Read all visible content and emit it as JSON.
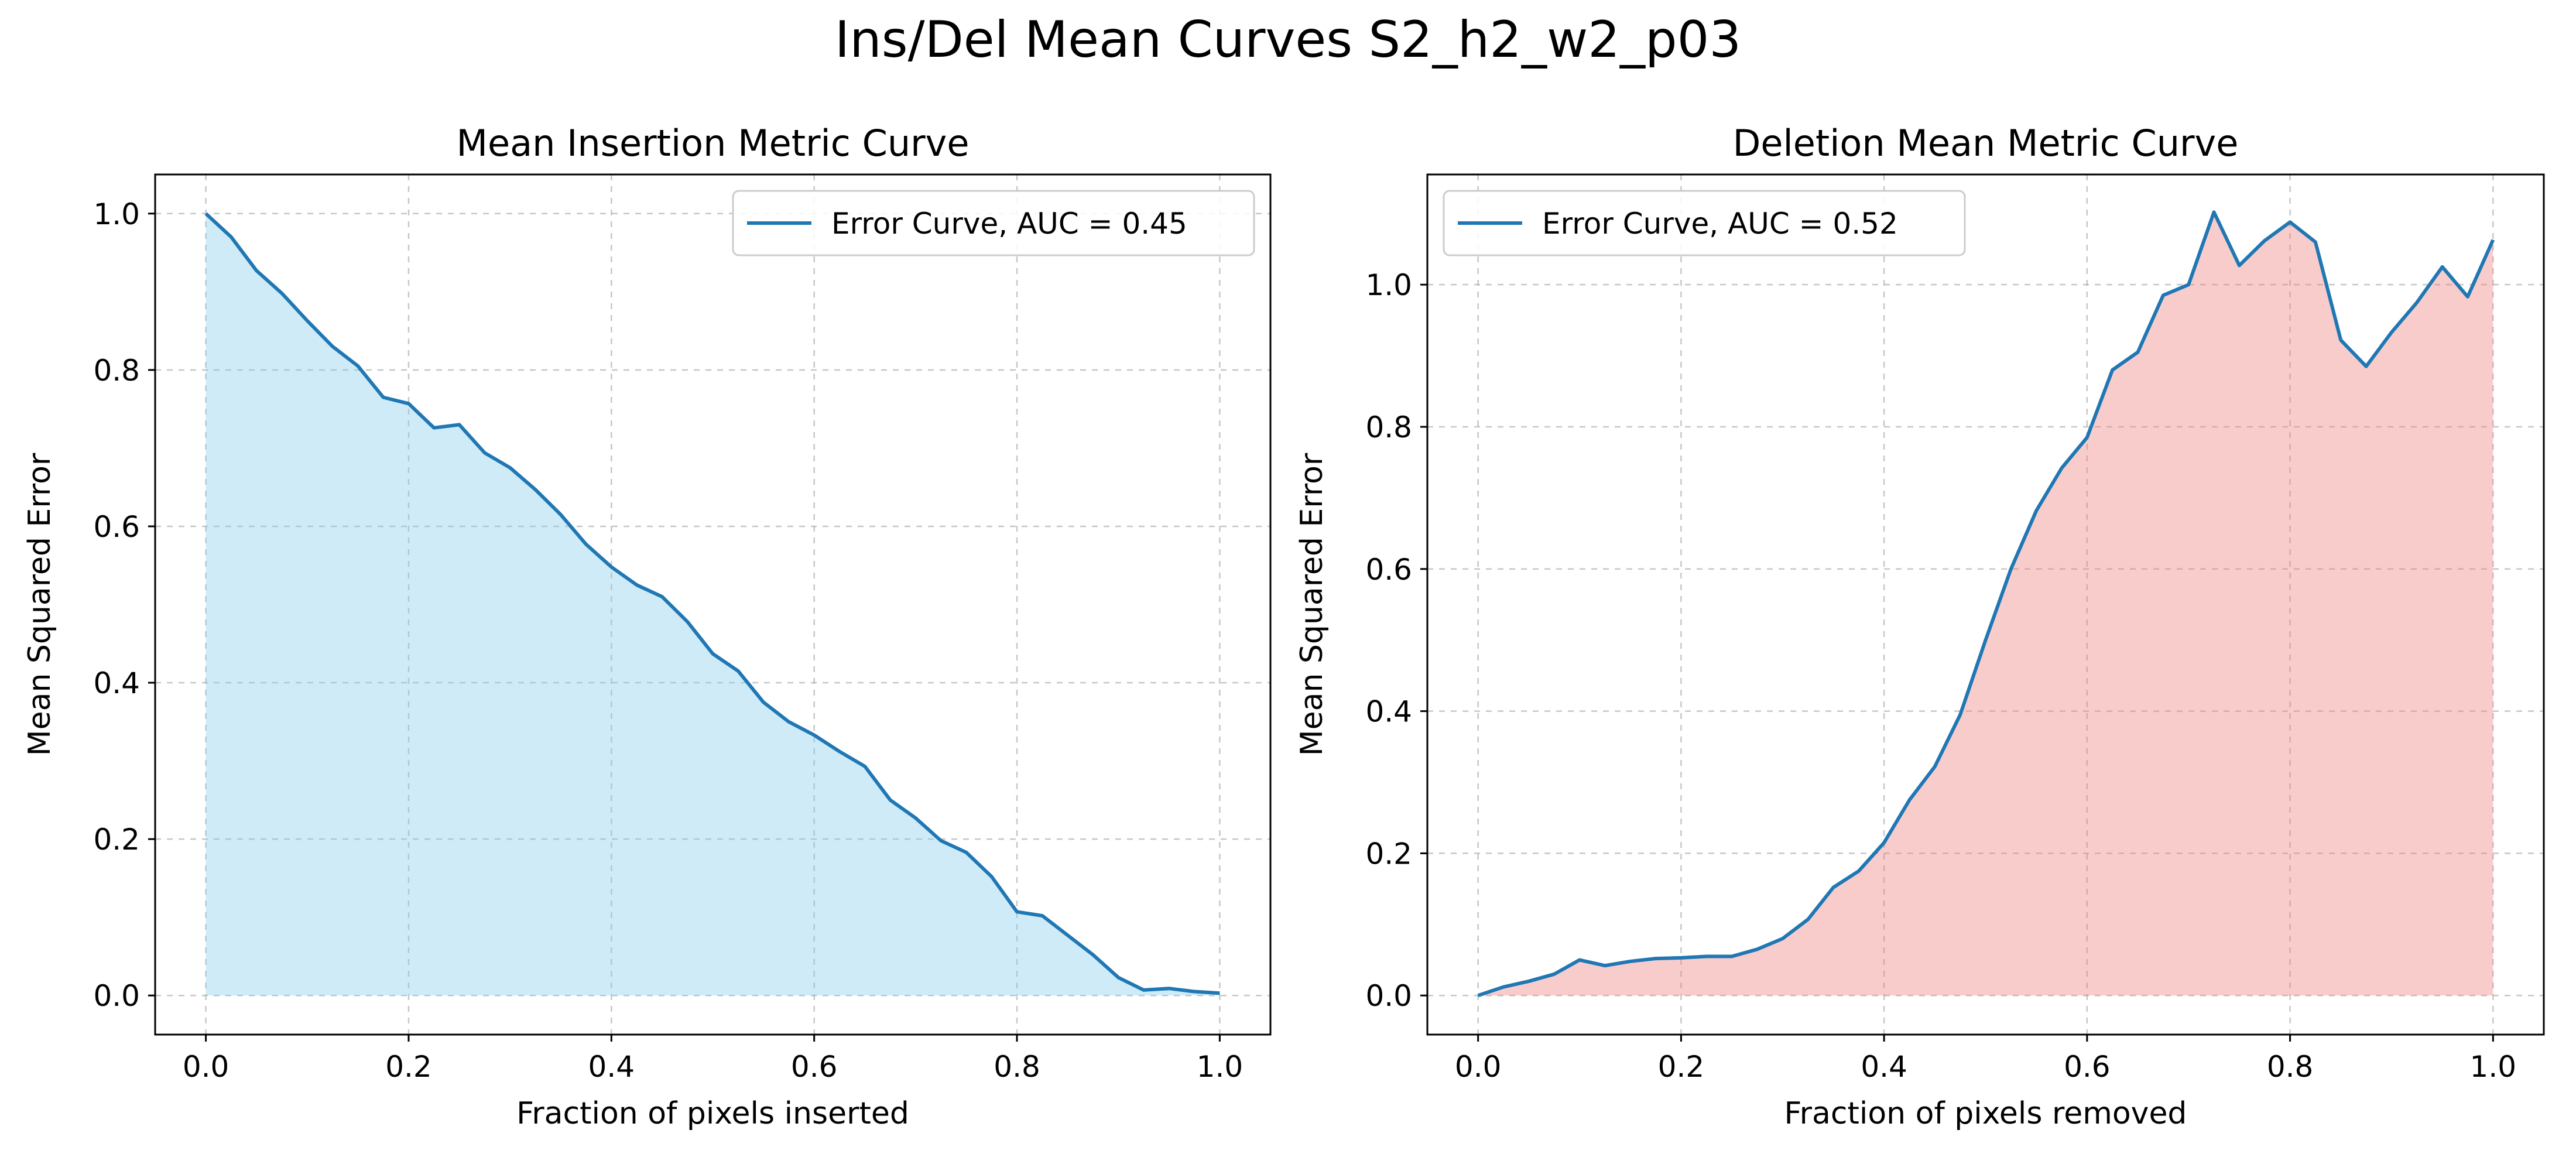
{
  "figure": {
    "suptitle": "Ins/Del Mean Curves S2_h2_w2_p03"
  },
  "chart_data": [
    {
      "type": "area",
      "title": "Mean Insertion Metric Curve",
      "xlabel": "Fraction of pixels inserted",
      "ylabel": "Mean Squared Error",
      "xlim": [
        -0.05,
        1.05
      ],
      "ylim": [
        -0.05,
        1.05
      ],
      "xticks": [
        0.0,
        0.2,
        0.4,
        0.6,
        0.8,
        1.0
      ],
      "yticks": [
        0.0,
        0.2,
        0.4,
        0.6,
        0.8,
        1.0
      ],
      "tick_labels_x": [
        "0.0",
        "0.2",
        "0.4",
        "0.6",
        "0.8",
        "1.0"
      ],
      "tick_labels_y": [
        "0.0",
        "0.2",
        "0.4",
        "0.6",
        "0.8",
        "1.0"
      ],
      "grid": true,
      "legend_position": "top-right",
      "line_color": "#1f77b4",
      "fill_color": "#87ceeb",
      "series": [
        {
          "name": "Error Curve, AUC = 0.45",
          "x": [
            0.0,
            0.025,
            0.05,
            0.075,
            0.1,
            0.125,
            0.15,
            0.175,
            0.2,
            0.225,
            0.25,
            0.275,
            0.3,
            0.325,
            0.35,
            0.375,
            0.4,
            0.425,
            0.45,
            0.475,
            0.5,
            0.525,
            0.55,
            0.575,
            0.6,
            0.625,
            0.65,
            0.675,
            0.7,
            0.725,
            0.75,
            0.775,
            0.8,
            0.825,
            0.85,
            0.875,
            0.9,
            0.925,
            0.95,
            0.975,
            1.0
          ],
          "y": [
            1.0,
            0.97,
            0.927,
            0.898,
            0.863,
            0.83,
            0.805,
            0.765,
            0.757,
            0.726,
            0.73,
            0.694,
            0.675,
            0.647,
            0.615,
            0.577,
            0.548,
            0.525,
            0.51,
            0.478,
            0.437,
            0.415,
            0.375,
            0.35,
            0.333,
            0.312,
            0.293,
            0.25,
            0.227,
            0.198,
            0.183,
            0.152,
            0.107,
            0.102,
            0.077,
            0.052,
            0.023,
            0.007,
            0.009,
            0.005,
            0.003
          ]
        }
      ]
    },
    {
      "type": "area",
      "title": "Deletion Mean Metric Curve",
      "xlabel": "Fraction of pixels removed",
      "ylabel": "Mean Squared Error",
      "xlim": [
        -0.05,
        1.05
      ],
      "ylim": [
        -0.055,
        1.155
      ],
      "xticks": [
        0.0,
        0.2,
        0.4,
        0.6,
        0.8,
        1.0
      ],
      "yticks": [
        0.0,
        0.2,
        0.4,
        0.6,
        0.8,
        1.0
      ],
      "tick_labels_x": [
        "0.0",
        "0.2",
        "0.4",
        "0.6",
        "0.8",
        "1.0"
      ],
      "tick_labels_y": [
        "0.0",
        "0.2",
        "0.4",
        "0.6",
        "0.8",
        "1.0"
      ],
      "grid": true,
      "legend_position": "top-left",
      "line_color": "#1f77b4",
      "fill_color": "#f08080",
      "series": [
        {
          "name": "Error Curve, AUC = 0.52",
          "x": [
            0.0,
            0.025,
            0.05,
            0.075,
            0.1,
            0.125,
            0.15,
            0.175,
            0.2,
            0.225,
            0.25,
            0.275,
            0.3,
            0.325,
            0.35,
            0.375,
            0.4,
            0.425,
            0.45,
            0.475,
            0.5,
            0.525,
            0.55,
            0.575,
            0.6,
            0.625,
            0.65,
            0.675,
            0.7,
            0.725,
            0.75,
            0.775,
            0.8,
            0.825,
            0.85,
            0.875,
            0.9,
            0.925,
            0.95,
            0.975,
            1.0
          ],
          "y": [
            0.0,
            0.012,
            0.02,
            0.03,
            0.05,
            0.042,
            0.048,
            0.052,
            0.053,
            0.055,
            0.055,
            0.065,
            0.08,
            0.107,
            0.152,
            0.175,
            0.215,
            0.275,
            0.322,
            0.395,
            0.5,
            0.6,
            0.682,
            0.742,
            0.785,
            0.88,
            0.905,
            0.985,
            1.0,
            1.102,
            1.027,
            1.062,
            1.088,
            1.06,
            0.922,
            0.885,
            0.933,
            0.975,
            1.025,
            0.983,
            1.063
          ]
        }
      ]
    }
  ]
}
